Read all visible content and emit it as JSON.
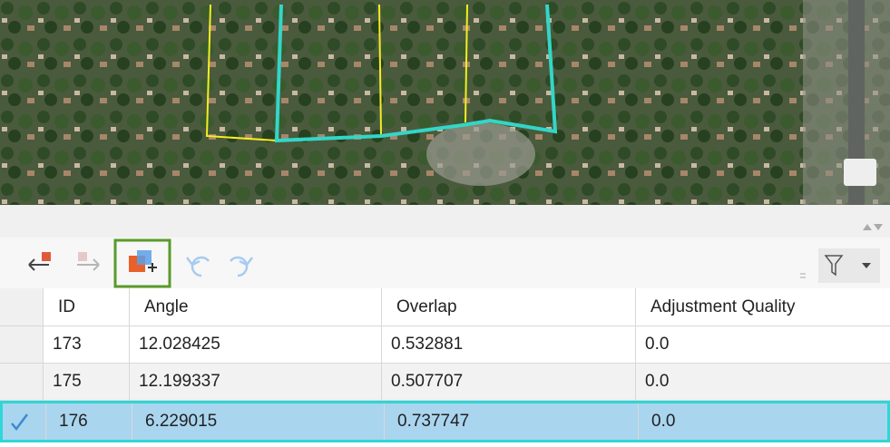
{
  "table": {
    "columns": [
      "ID",
      "Angle",
      "Overlap",
      "Adjustment Quality"
    ],
    "rows": [
      [
        "173",
        "12.028425",
        "0.532881",
        "0.0"
      ],
      [
        "175",
        "12.199337",
        "0.507707",
        "0.0"
      ],
      [
        "176",
        "6.229015",
        "0.737747",
        "0.0"
      ]
    ],
    "selected_row": 2
  }
}
